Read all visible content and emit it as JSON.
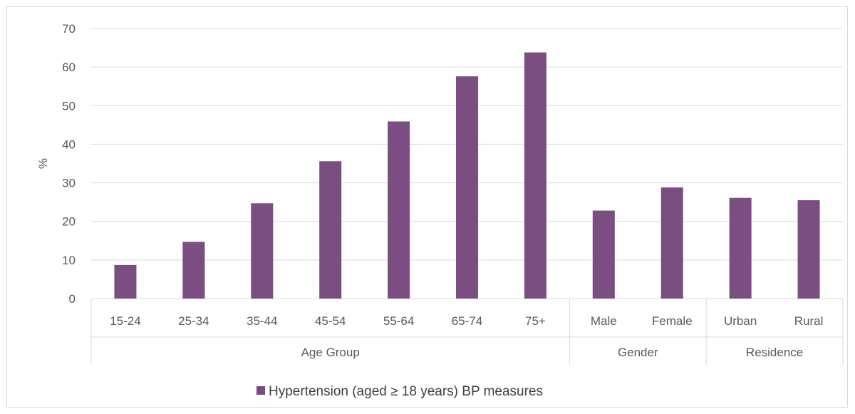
{
  "chart_data": {
    "type": "bar",
    "ylabel": "%",
    "ylim": [
      0,
      70
    ],
    "yticks": [
      0,
      10,
      20,
      30,
      40,
      50,
      60,
      70
    ],
    "grid": true,
    "categories": [
      "15-24",
      "25-34",
      "35-44",
      "45-54",
      "55-64",
      "65-74",
      "75+",
      "Male",
      "Female",
      "Urban",
      "Rural"
    ],
    "groups": [
      {
        "label": "Age Group",
        "count": 7
      },
      {
        "label": "Gender",
        "count": 2
      },
      {
        "label": "Residence",
        "count": 2
      }
    ],
    "series": [
      {
        "name": "Hypertension (aged  ≥ 18 years) BP measures",
        "color": "#7a4e80",
        "values": [
          8.7,
          14.7,
          24.7,
          35.6,
          45.9,
          57.6,
          63.8,
          22.8,
          28.8,
          26.1,
          25.5
        ]
      }
    ],
    "legend_position": "bottom"
  }
}
